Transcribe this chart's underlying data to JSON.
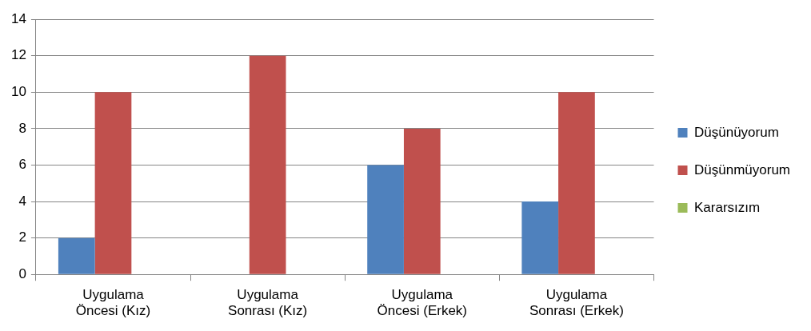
{
  "chart_data": {
    "type": "bar",
    "categories": [
      "Uygulama Öncesi (Kız)",
      "Uygulama Sonrası (Kız)",
      "Uygulama Öncesi (Erkek)",
      "Uygulama Sonrası (Erkek)"
    ],
    "series": [
      {
        "name": "Düşünüyorum",
        "color": "#4f81bd",
        "values": [
          2,
          0,
          6,
          4
        ]
      },
      {
        "name": "Düşünmüyorum",
        "color": "#c0504d",
        "values": [
          10,
          12,
          8,
          10
        ]
      },
      {
        "name": "Kararsızım",
        "color": "#9bbb59",
        "values": [
          0,
          0,
          0,
          0
        ]
      }
    ],
    "ylim": [
      0,
      14
    ],
    "yticks": [
      0,
      2,
      4,
      6,
      8,
      10,
      12,
      14
    ],
    "grid": "y",
    "legend": "right"
  }
}
